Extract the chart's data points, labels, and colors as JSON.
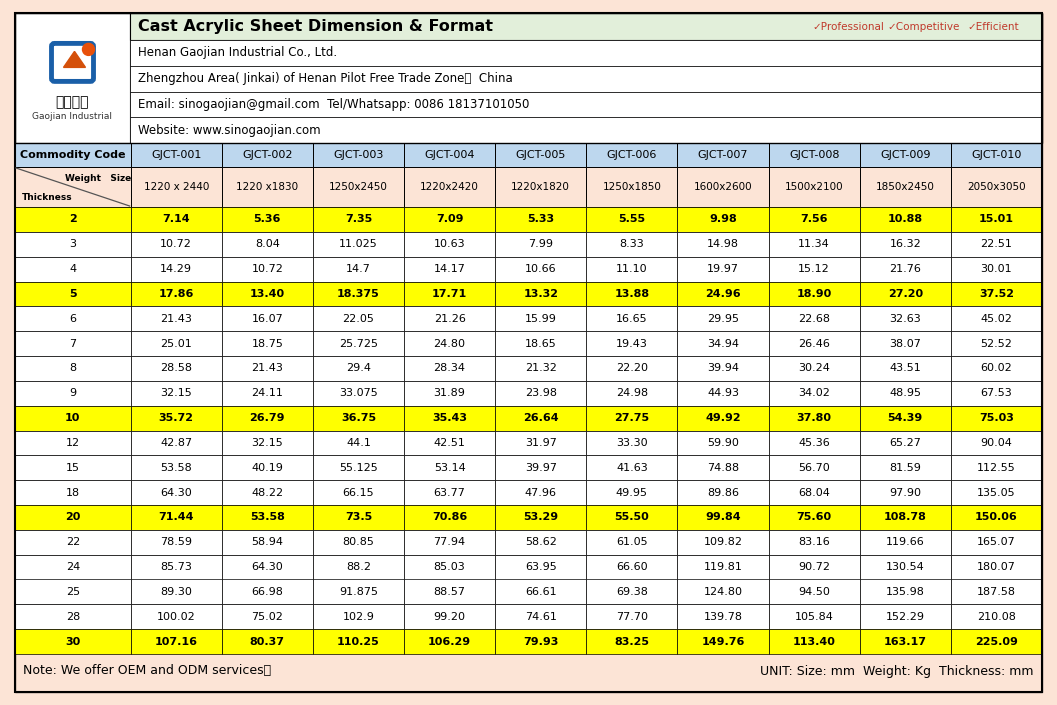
{
  "title": "Cast Acrylic Sheet Dimension & Format",
  "company": "Henan Gaojian Industrial Co., Ltd.",
  "address": "Zhengzhou Area( Jinkai) of Henan Pilot Free Trade Zone，  China",
  "email_tel": "Email: sinogaojian@gmail.com  Tel/Whatsapp: 0086 18137101050",
  "website": "Website: www.sinogaojian.com",
  "tagline": [
    "✓Professional",
    "✓Competitive",
    "✓Efficient"
  ],
  "tagline_colors": [
    "#c0392b",
    "#c0392b",
    "#c0392b"
  ],
  "note": "Note: We offer OEM and ODM services．",
  "unit_note": "UNIT: Size: mm  Weight: Kg  Thickness: mm",
  "col_headers": [
    "Commodity Code",
    "GJCT-001",
    "GJCT-002",
    "GJCT-003",
    "GJCT-004",
    "GJCT-005",
    "GJCT-006",
    "GJCT-007",
    "GJCT-008",
    "GJCT-009",
    "GJCT-010"
  ],
  "size_row": [
    "",
    "1220 x 2440",
    "1220 x1830",
    "1250x2450",
    "1220x2420",
    "1220x1820",
    "1250x1850",
    "1600x2600",
    "1500x2100",
    "1850x2450",
    "2050x3050"
  ],
  "rows": [
    [
      "2",
      "7.14",
      "5.36",
      "7.35",
      "7.09",
      "5.33",
      "5.55",
      "9.98",
      "7.56",
      "10.88",
      "15.01"
    ],
    [
      "3",
      "10.72",
      "8.04",
      "11.025",
      "10.63",
      "7.99",
      "8.33",
      "14.98",
      "11.34",
      "16.32",
      "22.51"
    ],
    [
      "4",
      "14.29",
      "10.72",
      "14.7",
      "14.17",
      "10.66",
      "11.10",
      "19.97",
      "15.12",
      "21.76",
      "30.01"
    ],
    [
      "5",
      "17.86",
      "13.40",
      "18.375",
      "17.71",
      "13.32",
      "13.88",
      "24.96",
      "18.90",
      "27.20",
      "37.52"
    ],
    [
      "6",
      "21.43",
      "16.07",
      "22.05",
      "21.26",
      "15.99",
      "16.65",
      "29.95",
      "22.68",
      "32.63",
      "45.02"
    ],
    [
      "7",
      "25.01",
      "18.75",
      "25.725",
      "24.80",
      "18.65",
      "19.43",
      "34.94",
      "26.46",
      "38.07",
      "52.52"
    ],
    [
      "8",
      "28.58",
      "21.43",
      "29.4",
      "28.34",
      "21.32",
      "22.20",
      "39.94",
      "30.24",
      "43.51",
      "60.02"
    ],
    [
      "9",
      "32.15",
      "24.11",
      "33.075",
      "31.89",
      "23.98",
      "24.98",
      "44.93",
      "34.02",
      "48.95",
      "67.53"
    ],
    [
      "10",
      "35.72",
      "26.79",
      "36.75",
      "35.43",
      "26.64",
      "27.75",
      "49.92",
      "37.80",
      "54.39",
      "75.03"
    ],
    [
      "12",
      "42.87",
      "32.15",
      "44.1",
      "42.51",
      "31.97",
      "33.30",
      "59.90",
      "45.36",
      "65.27",
      "90.04"
    ],
    [
      "15",
      "53.58",
      "40.19",
      "55.125",
      "53.14",
      "39.97",
      "41.63",
      "74.88",
      "56.70",
      "81.59",
      "112.55"
    ],
    [
      "18",
      "64.30",
      "48.22",
      "66.15",
      "63.77",
      "47.96",
      "49.95",
      "89.86",
      "68.04",
      "97.90",
      "135.05"
    ],
    [
      "20",
      "71.44",
      "53.58",
      "73.5",
      "70.86",
      "53.29",
      "55.50",
      "99.84",
      "75.60",
      "108.78",
      "150.06"
    ],
    [
      "22",
      "78.59",
      "58.94",
      "80.85",
      "77.94",
      "58.62",
      "61.05",
      "109.82",
      "83.16",
      "119.66",
      "165.07"
    ],
    [
      "24",
      "85.73",
      "64.30",
      "88.2",
      "85.03",
      "63.95",
      "66.60",
      "119.81",
      "90.72",
      "130.54",
      "180.07"
    ],
    [
      "25",
      "89.30",
      "66.98",
      "91.875",
      "88.57",
      "66.61",
      "69.38",
      "124.80",
      "94.50",
      "135.98",
      "187.58"
    ],
    [
      "28",
      "100.02",
      "75.02",
      "102.9",
      "99.20",
      "74.61",
      "77.70",
      "139.78",
      "105.84",
      "152.29",
      "210.08"
    ],
    [
      "30",
      "107.16",
      "80.37",
      "110.25",
      "106.29",
      "79.93",
      "83.25",
      "149.76",
      "113.40",
      "163.17",
      "225.09"
    ]
  ],
  "yellow_rows": [
    0,
    3,
    8,
    12,
    17
  ],
  "commodity_bg": "#bdd7ee",
  "size_row_bg": "#fce4d6",
  "yellow_bg": "#ffff00",
  "normal_bg": "#ffffff",
  "outer_bg": "#fce4d6",
  "title_bg": "#e2efda",
  "logo_bg": "#ffffff"
}
